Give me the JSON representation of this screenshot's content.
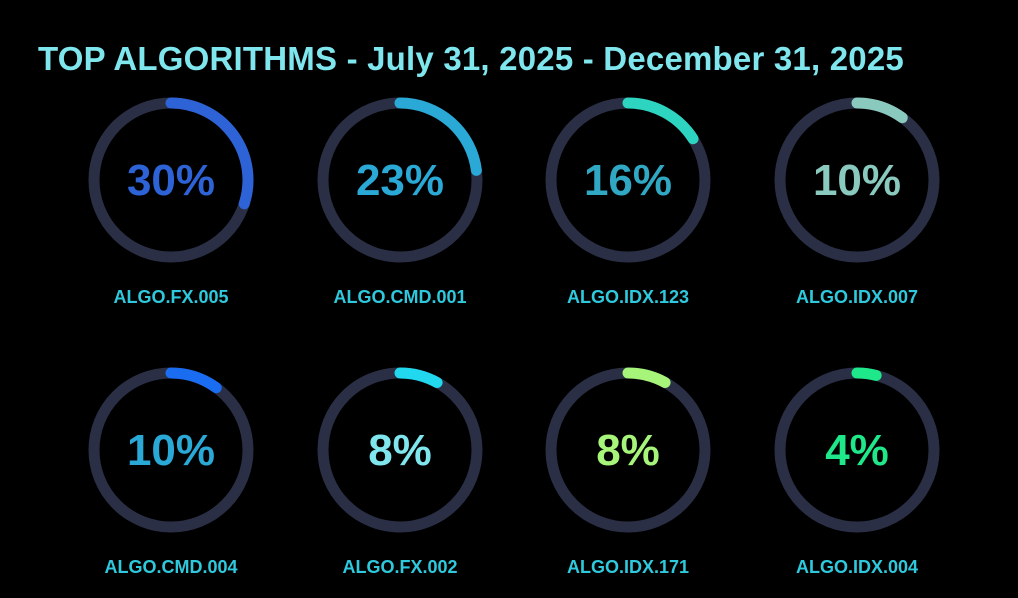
{
  "title": "TOP ALGORITHMS - July 31, 2025 - December 31, 2025",
  "colors": {
    "background": "#000000",
    "track": "#2a2f45",
    "title": "#7fe6ee",
    "label": "#2ec9dc"
  },
  "chart_data": {
    "type": "pie",
    "style": "radial-progress-rings",
    "title": "TOP ALGORITHMS - July 31, 2025 - December 31, 2025",
    "items": [
      {
        "name": "ALGO.FX.005",
        "value": 30,
        "display": "30%",
        "color": "#2d63d6",
        "text_color": "#2d63d6"
      },
      {
        "name": "ALGO.CMD.001",
        "value": 23,
        "display": "23%",
        "color": "#2aa8d6",
        "text_color": "#2aa8d6"
      },
      {
        "name": "ALGO.IDX.123",
        "value": 16,
        "display": "16%",
        "color": "#2dd4bf",
        "text_color": "#30a8c4"
      },
      {
        "name": "ALGO.IDX.007",
        "value": 10,
        "display": "10%",
        "color": "#8ac9bd",
        "text_color": "#8ac9bd"
      },
      {
        "name": "ALGO.CMD.004",
        "value": 10,
        "display": "10%",
        "color": "#1a6cf0",
        "text_color": "#2aa8d6"
      },
      {
        "name": "ALGO.FX.002",
        "value": 8,
        "display": "8%",
        "color": "#22d8ef",
        "text_color": "#7fe6ee"
      },
      {
        "name": "ALGO.IDX.171",
        "value": 8,
        "display": "8%",
        "color": "#a6f57a",
        "text_color": "#a6f57a"
      },
      {
        "name": "ALGO.IDX.004",
        "value": 4,
        "display": "4%",
        "color": "#1ee88a",
        "text_color": "#1ee88a"
      }
    ]
  }
}
